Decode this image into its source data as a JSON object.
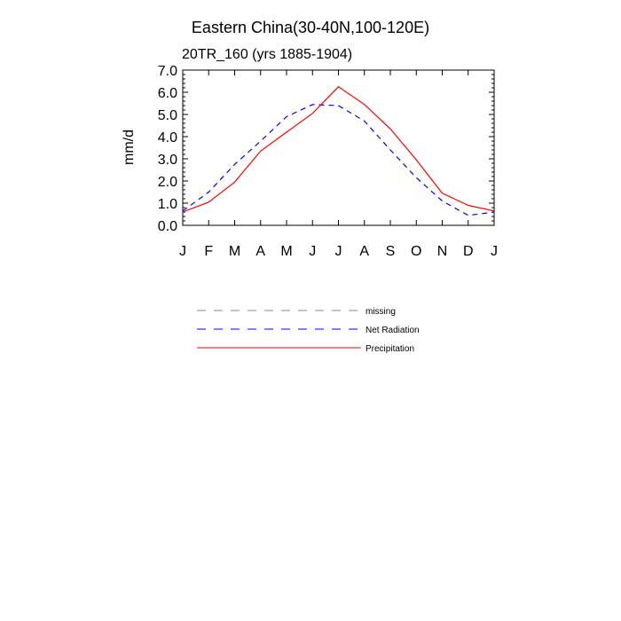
{
  "chart_data": {
    "type": "line",
    "title": "Eastern China(30-40N,100-120E)",
    "subtitle": "20TR_160 (yrs 1885-1904)",
    "ylabel": "mm/d",
    "xlabel": "",
    "ylim": [
      0,
      7
    ],
    "yticks": [
      "0.0",
      "1.0",
      "2.0",
      "3.0",
      "4.0",
      "5.0",
      "6.0",
      "7.0"
    ],
    "categories": [
      "J",
      "F",
      "M",
      "A",
      "M",
      "J",
      "J",
      "A",
      "S",
      "O",
      "N",
      "D",
      "J"
    ],
    "series": [
      {
        "name": "Net Radiation",
        "color": "#0000ff",
        "dash": "dashed",
        "values": [
          0.65,
          1.5,
          2.75,
          3.8,
          4.9,
          5.45,
          5.4,
          4.7,
          3.4,
          2.15,
          1.1,
          0.45,
          0.6
        ]
      },
      {
        "name": "Precipitation",
        "color": "#ff0000",
        "dash": "solid",
        "values": [
          0.6,
          1.05,
          1.95,
          3.35,
          4.2,
          5.05,
          6.25,
          5.45,
          4.35,
          2.95,
          1.45,
          0.9,
          0.65
        ]
      }
    ],
    "legend": [
      {
        "label": "missing",
        "color": "#888888",
        "dash": "dashed"
      },
      {
        "label": "Net Radiation",
        "color": "#0000ff",
        "dash": "dashed"
      },
      {
        "label": "Precipitation",
        "color": "#ff0000",
        "dash": "solid"
      }
    ]
  }
}
